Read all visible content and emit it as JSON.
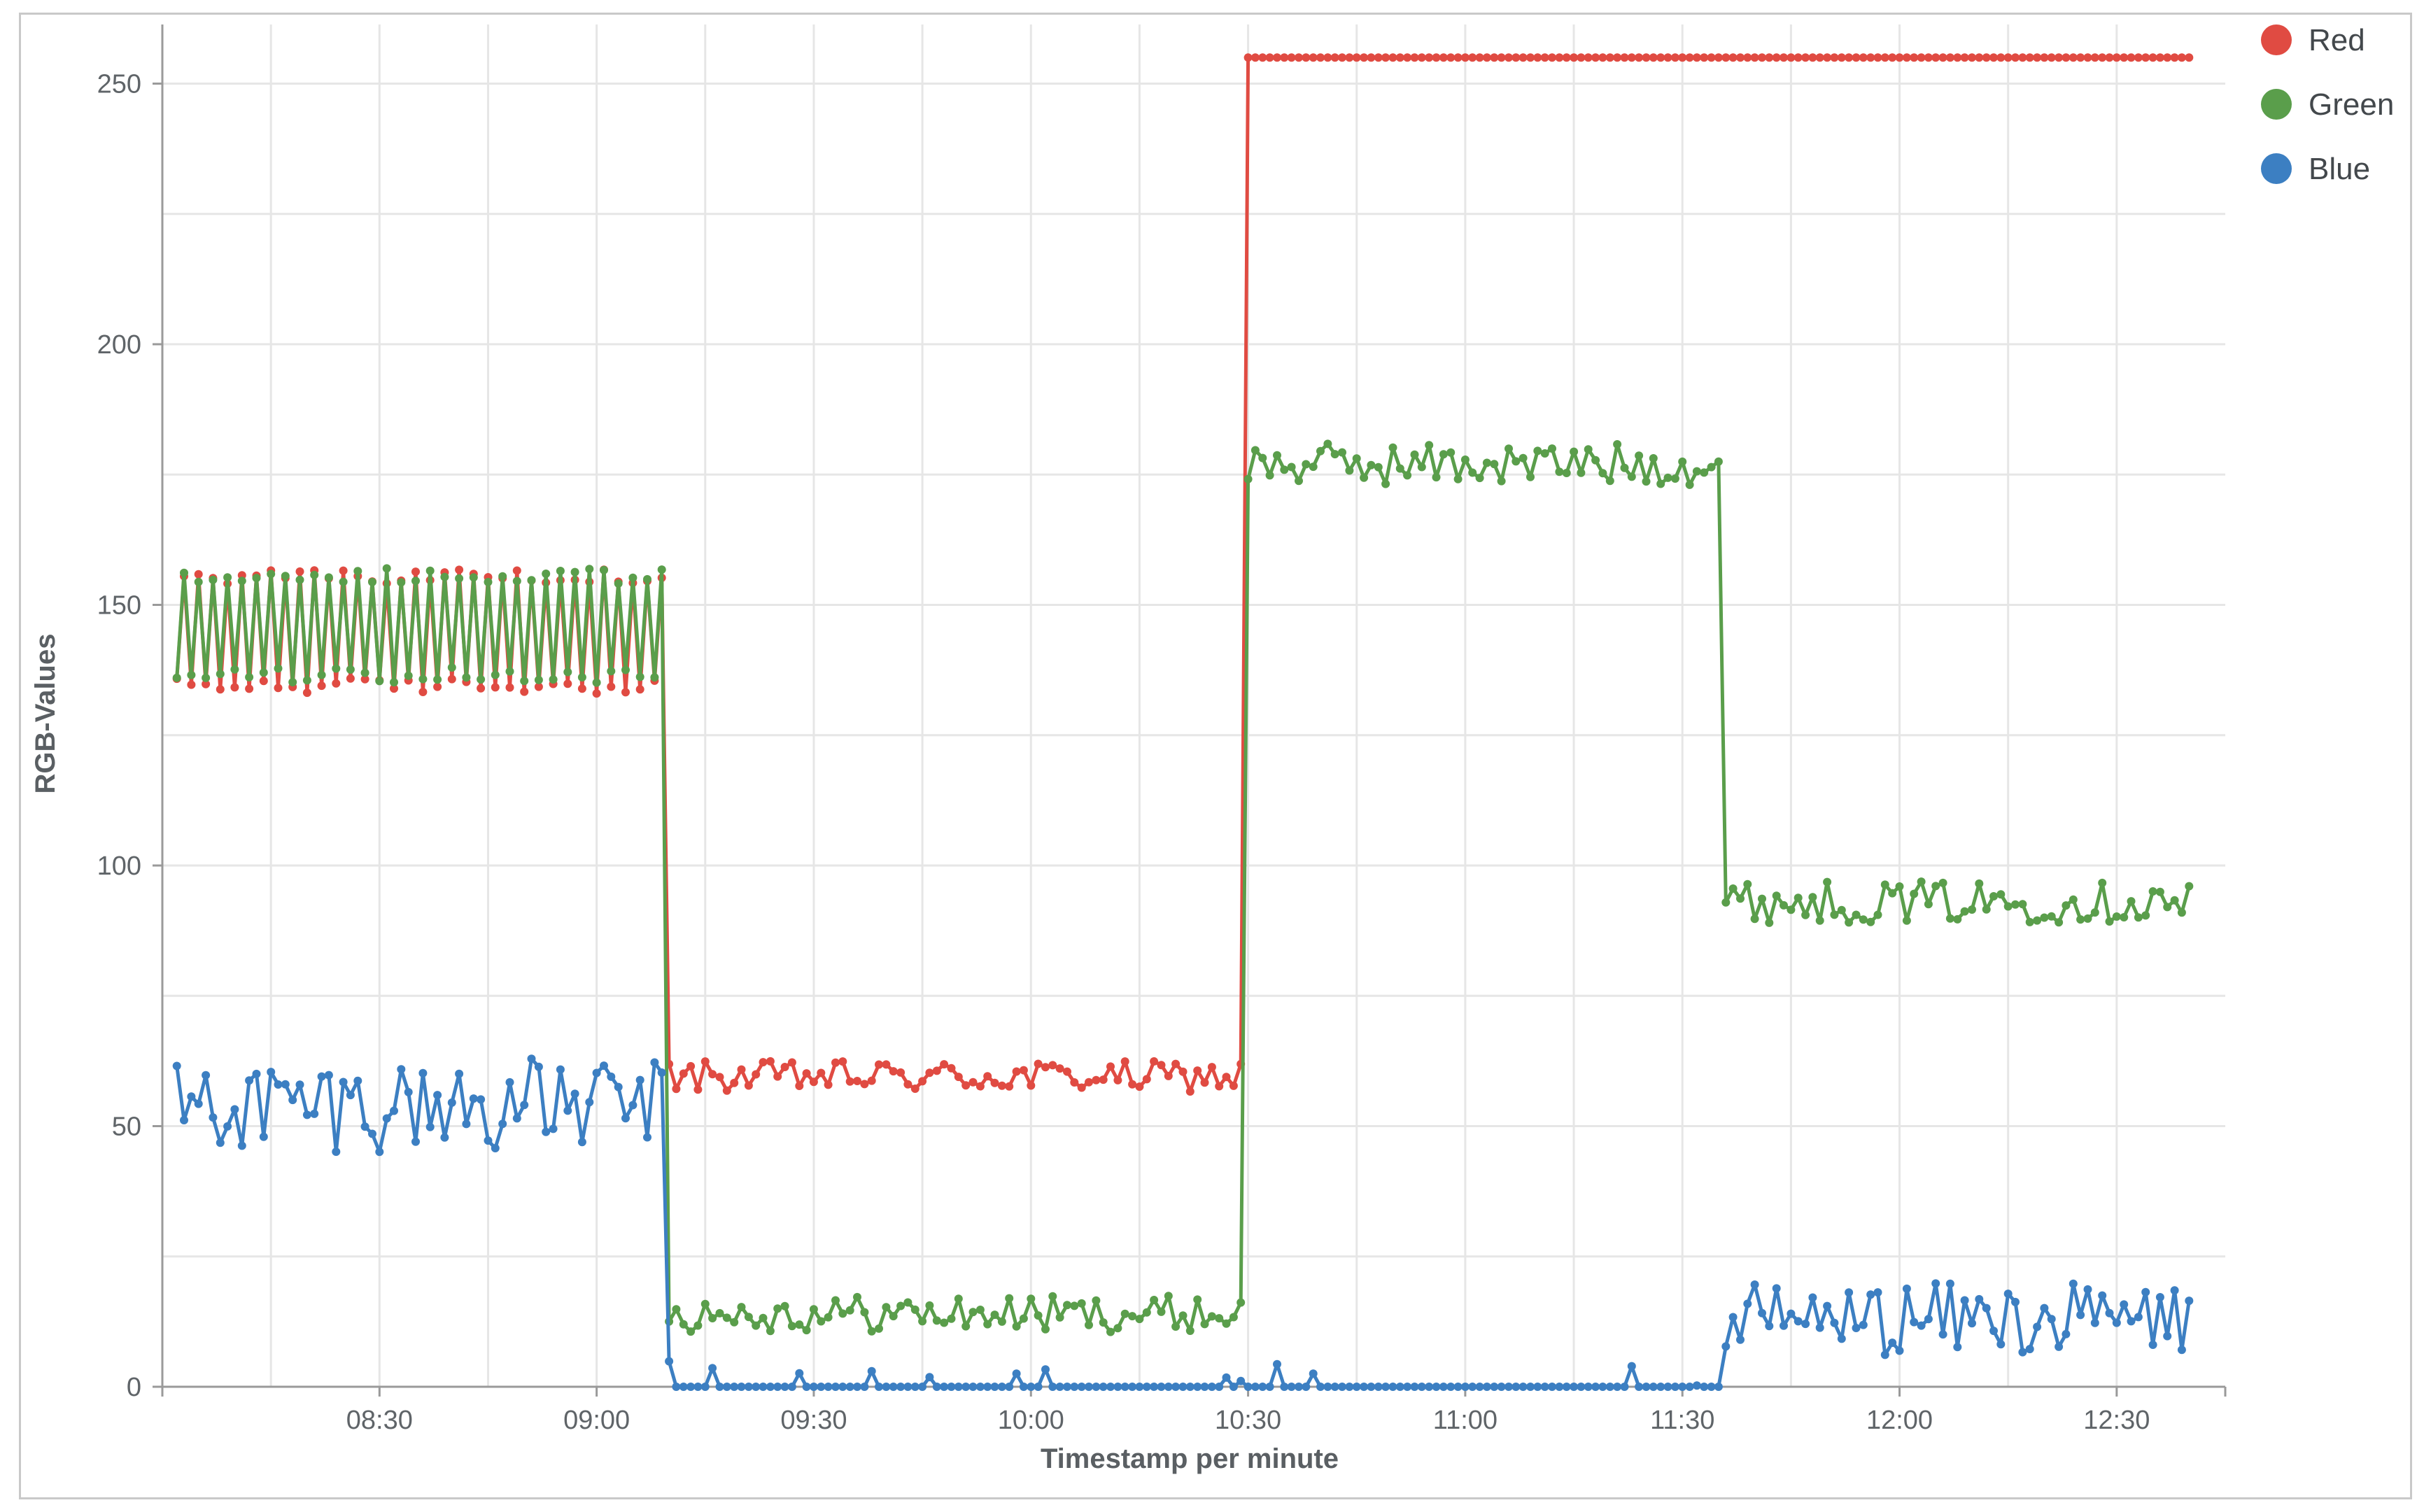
{
  "chart_data": {
    "type": "line",
    "title": "",
    "xlabel": "Timestamp per minute",
    "ylabel": "RGB-Values",
    "x_range": [
      "08:02",
      "12:40"
    ],
    "ylim": [
      0,
      260
    ],
    "x_ticks": [
      "08:30",
      "09:00",
      "09:30",
      "10:00",
      "10:30",
      "11:00",
      "11:30",
      "12:00",
      "12:30"
    ],
    "y_ticks": [
      "0",
      "50",
      "100",
      "150",
      "200",
      "250"
    ],
    "grid": true,
    "legend": {
      "position": "top-right",
      "entries": [
        "Red",
        "Green",
        "Blue"
      ]
    },
    "colors": {
      "Red": "#e04b42",
      "Green": "#5a9e4b",
      "Blue": "#3c7fc2"
    },
    "series": [
      {
        "name": "Red",
        "color": "#e04b42",
        "segments": [
          {
            "x_start": "08:02",
            "x_end": "09:09",
            "pattern": "oscillating",
            "low": 133,
            "high": 157,
            "period_minutes": 2
          },
          {
            "x_start": "09:10",
            "x_end": "10:29",
            "pattern": "noisy",
            "mean": 59.5,
            "amplitude": 3
          },
          {
            "x_start": "10:30",
            "x_end": "12:40",
            "pattern": "flat",
            "value": 255
          }
        ]
      },
      {
        "name": "Green",
        "color": "#5a9e4b",
        "segments": [
          {
            "x_start": "08:02",
            "x_end": "09:09",
            "pattern": "oscillating",
            "low": 135,
            "high": 157,
            "period_minutes": 2
          },
          {
            "x_start": "09:10",
            "x_end": "10:29",
            "pattern": "noisy",
            "mean": 14,
            "amplitude": 3.5
          },
          {
            "x_start": "10:30",
            "x_end": "11:35",
            "pattern": "noisy",
            "mean": 177,
            "amplitude": 4
          },
          {
            "x_start": "11:36",
            "x_end": "12:40",
            "pattern": "noisy",
            "mean": 93,
            "amplitude": 4
          }
        ]
      },
      {
        "name": "Blue",
        "color": "#3c7fc2",
        "segments": [
          {
            "x_start": "08:02",
            "x_end": "09:09",
            "pattern": "noisy",
            "mean": 54,
            "amplitude": 9
          },
          {
            "x_start": "09:10",
            "x_end": "11:35",
            "pattern": "sparse-spikes",
            "base": 0,
            "spike_max": 5
          },
          {
            "x_start": "11:36",
            "x_end": "12:40",
            "pattern": "noisy",
            "mean": 13,
            "amplitude": 7
          }
        ]
      }
    ]
  }
}
